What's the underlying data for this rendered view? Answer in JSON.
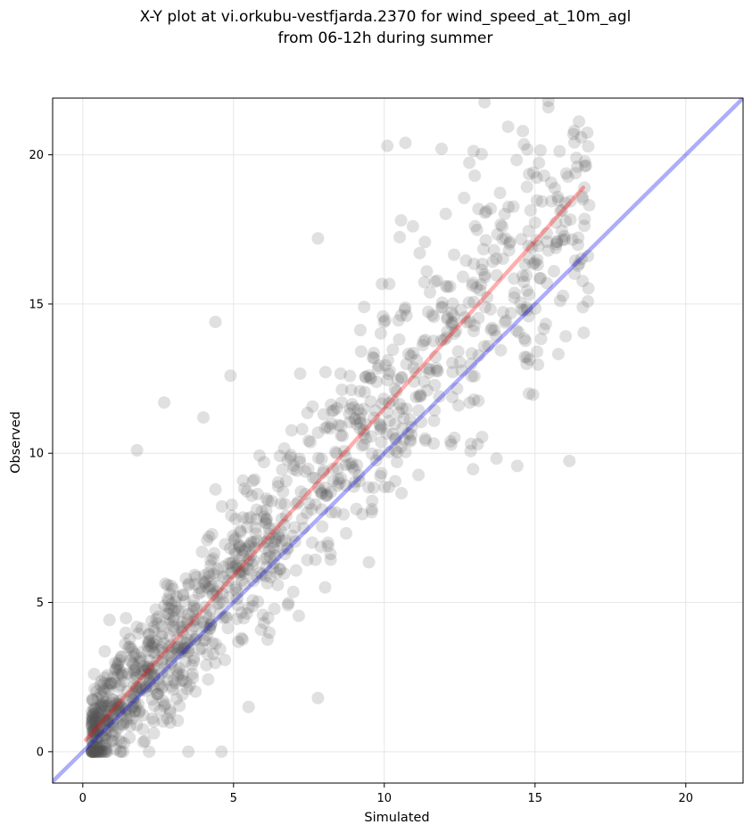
{
  "chart_data": {
    "type": "scatter",
    "title_lines": [
      "X-Y plot at vi.orkubu-vestfjarda.2370 for wind_speed_at_10m_agl",
      "from 06-12h during summer"
    ],
    "xlabel": "Simulated",
    "ylabel": "Observed",
    "xlim": [
      -1.0,
      21.9
    ],
    "ylim": [
      -1.05,
      21.9
    ],
    "xticks": [
      0,
      5,
      10,
      15,
      20
    ],
    "yticks": [
      0,
      5,
      10,
      15,
      20
    ],
    "grid": true,
    "points_style": {
      "color": "#555555",
      "opacity": 0.18
    },
    "point_count_approx": 1200,
    "scatter_seed": 7,
    "approx_points": [
      [
        1.8,
        10.1
      ],
      [
        2.7,
        11.7
      ],
      [
        4.4,
        14.4
      ],
      [
        4.0,
        11.2
      ],
      [
        4.9,
        12.6
      ],
      [
        7.8,
        17.2
      ],
      [
        10.1,
        20.3
      ],
      [
        10.7,
        20.4
      ],
      [
        11.9,
        20.2
      ],
      [
        16.3,
        20.8
      ],
      [
        16.4,
        19.6
      ],
      [
        13.0,
        19.3
      ],
      [
        15.3,
        19.3
      ],
      [
        14.8,
        12.0
      ],
      [
        7.8,
        1.8
      ],
      [
        5.5,
        1.5
      ],
      [
        3.5,
        0.0
      ],
      [
        2.2,
        0.0
      ],
      [
        4.6,
        0.0
      ],
      [
        12.2,
        10.4
      ]
    ],
    "series": [
      {
        "role": "regression",
        "color": "#ff0000",
        "opacity": 0.32,
        "x": [
          0.1,
          16.6
        ],
        "y": [
          0.4,
          18.9
        ]
      },
      {
        "role": "identity",
        "color": "#0000ee",
        "opacity": 0.32,
        "x": [
          -1.0,
          21.9
        ],
        "y": [
          -1.0,
          21.9
        ]
      }
    ]
  }
}
